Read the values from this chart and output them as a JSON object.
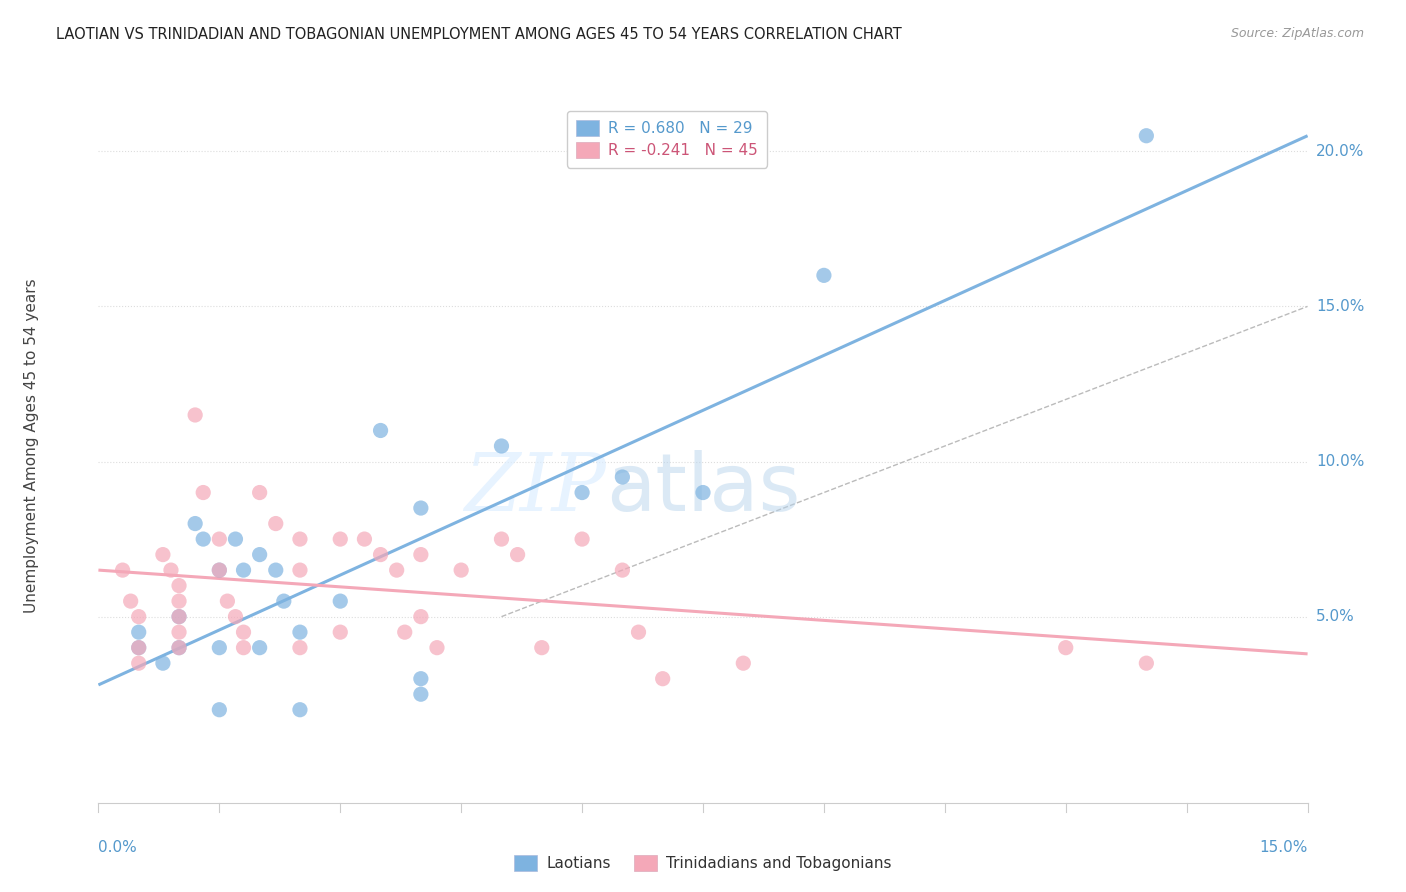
{
  "title": "LAOTIAN VS TRINIDADIAN AND TOBAGONIAN UNEMPLOYMENT AMONG AGES 45 TO 54 YEARS CORRELATION CHART",
  "source": "Source: ZipAtlas.com",
  "ylabel": "Unemployment Among Ages 45 to 54 years",
  "xlim": [
    0.0,
    0.15
  ],
  "ylim": [
    -0.01,
    0.22
  ],
  "yticks": [
    0.05,
    0.1,
    0.15,
    0.2
  ],
  "ytick_labels": [
    "5.0%",
    "10.0%",
    "15.0%",
    "20.0%"
  ],
  "blue_R": 0.68,
  "blue_N": 29,
  "pink_R": -0.241,
  "pink_N": 45,
  "blue_color": "#7EB3E0",
  "pink_color": "#F4A8B8",
  "blue_label": "Laotians",
  "pink_label": "Trinidadians and Tobagonians",
  "blue_scatter": [
    [
      0.005,
      0.04
    ],
    [
      0.008,
      0.035
    ],
    [
      0.01,
      0.04
    ],
    [
      0.01,
      0.05
    ],
    [
      0.012,
      0.08
    ],
    [
      0.013,
      0.075
    ],
    [
      0.015,
      0.065
    ],
    [
      0.015,
      0.04
    ],
    [
      0.017,
      0.075
    ],
    [
      0.018,
      0.065
    ],
    [
      0.02,
      0.07
    ],
    [
      0.02,
      0.04
    ],
    [
      0.022,
      0.065
    ],
    [
      0.023,
      0.055
    ],
    [
      0.025,
      0.045
    ],
    [
      0.025,
      0.02
    ],
    [
      0.03,
      0.055
    ],
    [
      0.035,
      0.11
    ],
    [
      0.04,
      0.085
    ],
    [
      0.04,
      0.025
    ],
    [
      0.05,
      0.105
    ],
    [
      0.06,
      0.09
    ],
    [
      0.065,
      0.095
    ],
    [
      0.075,
      0.09
    ],
    [
      0.09,
      0.16
    ],
    [
      0.13,
      0.205
    ],
    [
      0.005,
      0.045
    ],
    [
      0.015,
      0.02
    ],
    [
      0.04,
      0.03
    ]
  ],
  "pink_scatter": [
    [
      0.003,
      0.065
    ],
    [
      0.004,
      0.055
    ],
    [
      0.005,
      0.05
    ],
    [
      0.005,
      0.04
    ],
    [
      0.005,
      0.035
    ],
    [
      0.008,
      0.07
    ],
    [
      0.009,
      0.065
    ],
    [
      0.01,
      0.06
    ],
    [
      0.01,
      0.055
    ],
    [
      0.01,
      0.05
    ],
    [
      0.01,
      0.045
    ],
    [
      0.01,
      0.04
    ],
    [
      0.012,
      0.115
    ],
    [
      0.013,
      0.09
    ],
    [
      0.015,
      0.075
    ],
    [
      0.015,
      0.065
    ],
    [
      0.016,
      0.055
    ],
    [
      0.017,
      0.05
    ],
    [
      0.018,
      0.045
    ],
    [
      0.018,
      0.04
    ],
    [
      0.02,
      0.09
    ],
    [
      0.022,
      0.08
    ],
    [
      0.025,
      0.075
    ],
    [
      0.025,
      0.065
    ],
    [
      0.025,
      0.04
    ],
    [
      0.03,
      0.075
    ],
    [
      0.03,
      0.045
    ],
    [
      0.033,
      0.075
    ],
    [
      0.035,
      0.07
    ],
    [
      0.037,
      0.065
    ],
    [
      0.038,
      0.045
    ],
    [
      0.04,
      0.07
    ],
    [
      0.04,
      0.05
    ],
    [
      0.042,
      0.04
    ],
    [
      0.045,
      0.065
    ],
    [
      0.05,
      0.075
    ],
    [
      0.052,
      0.07
    ],
    [
      0.055,
      0.04
    ],
    [
      0.06,
      0.075
    ],
    [
      0.065,
      0.065
    ],
    [
      0.067,
      0.045
    ],
    [
      0.07,
      0.03
    ],
    [
      0.08,
      0.035
    ],
    [
      0.12,
      0.04
    ],
    [
      0.13,
      0.035
    ]
  ],
  "blue_line_x": [
    0.0,
    0.15
  ],
  "blue_line_y": [
    0.028,
    0.205
  ],
  "pink_line_x": [
    0.0,
    0.15
  ],
  "pink_line_y": [
    0.065,
    0.038
  ],
  "ref_line_x": [
    0.05,
    0.15
  ],
  "ref_line_y": [
    0.05,
    0.15
  ],
  "watermark_zip": "ZIP",
  "watermark_atlas": "atlas",
  "background_color": "#ffffff",
  "grid_color": "#dddddd",
  "spine_color": "#cccccc"
}
